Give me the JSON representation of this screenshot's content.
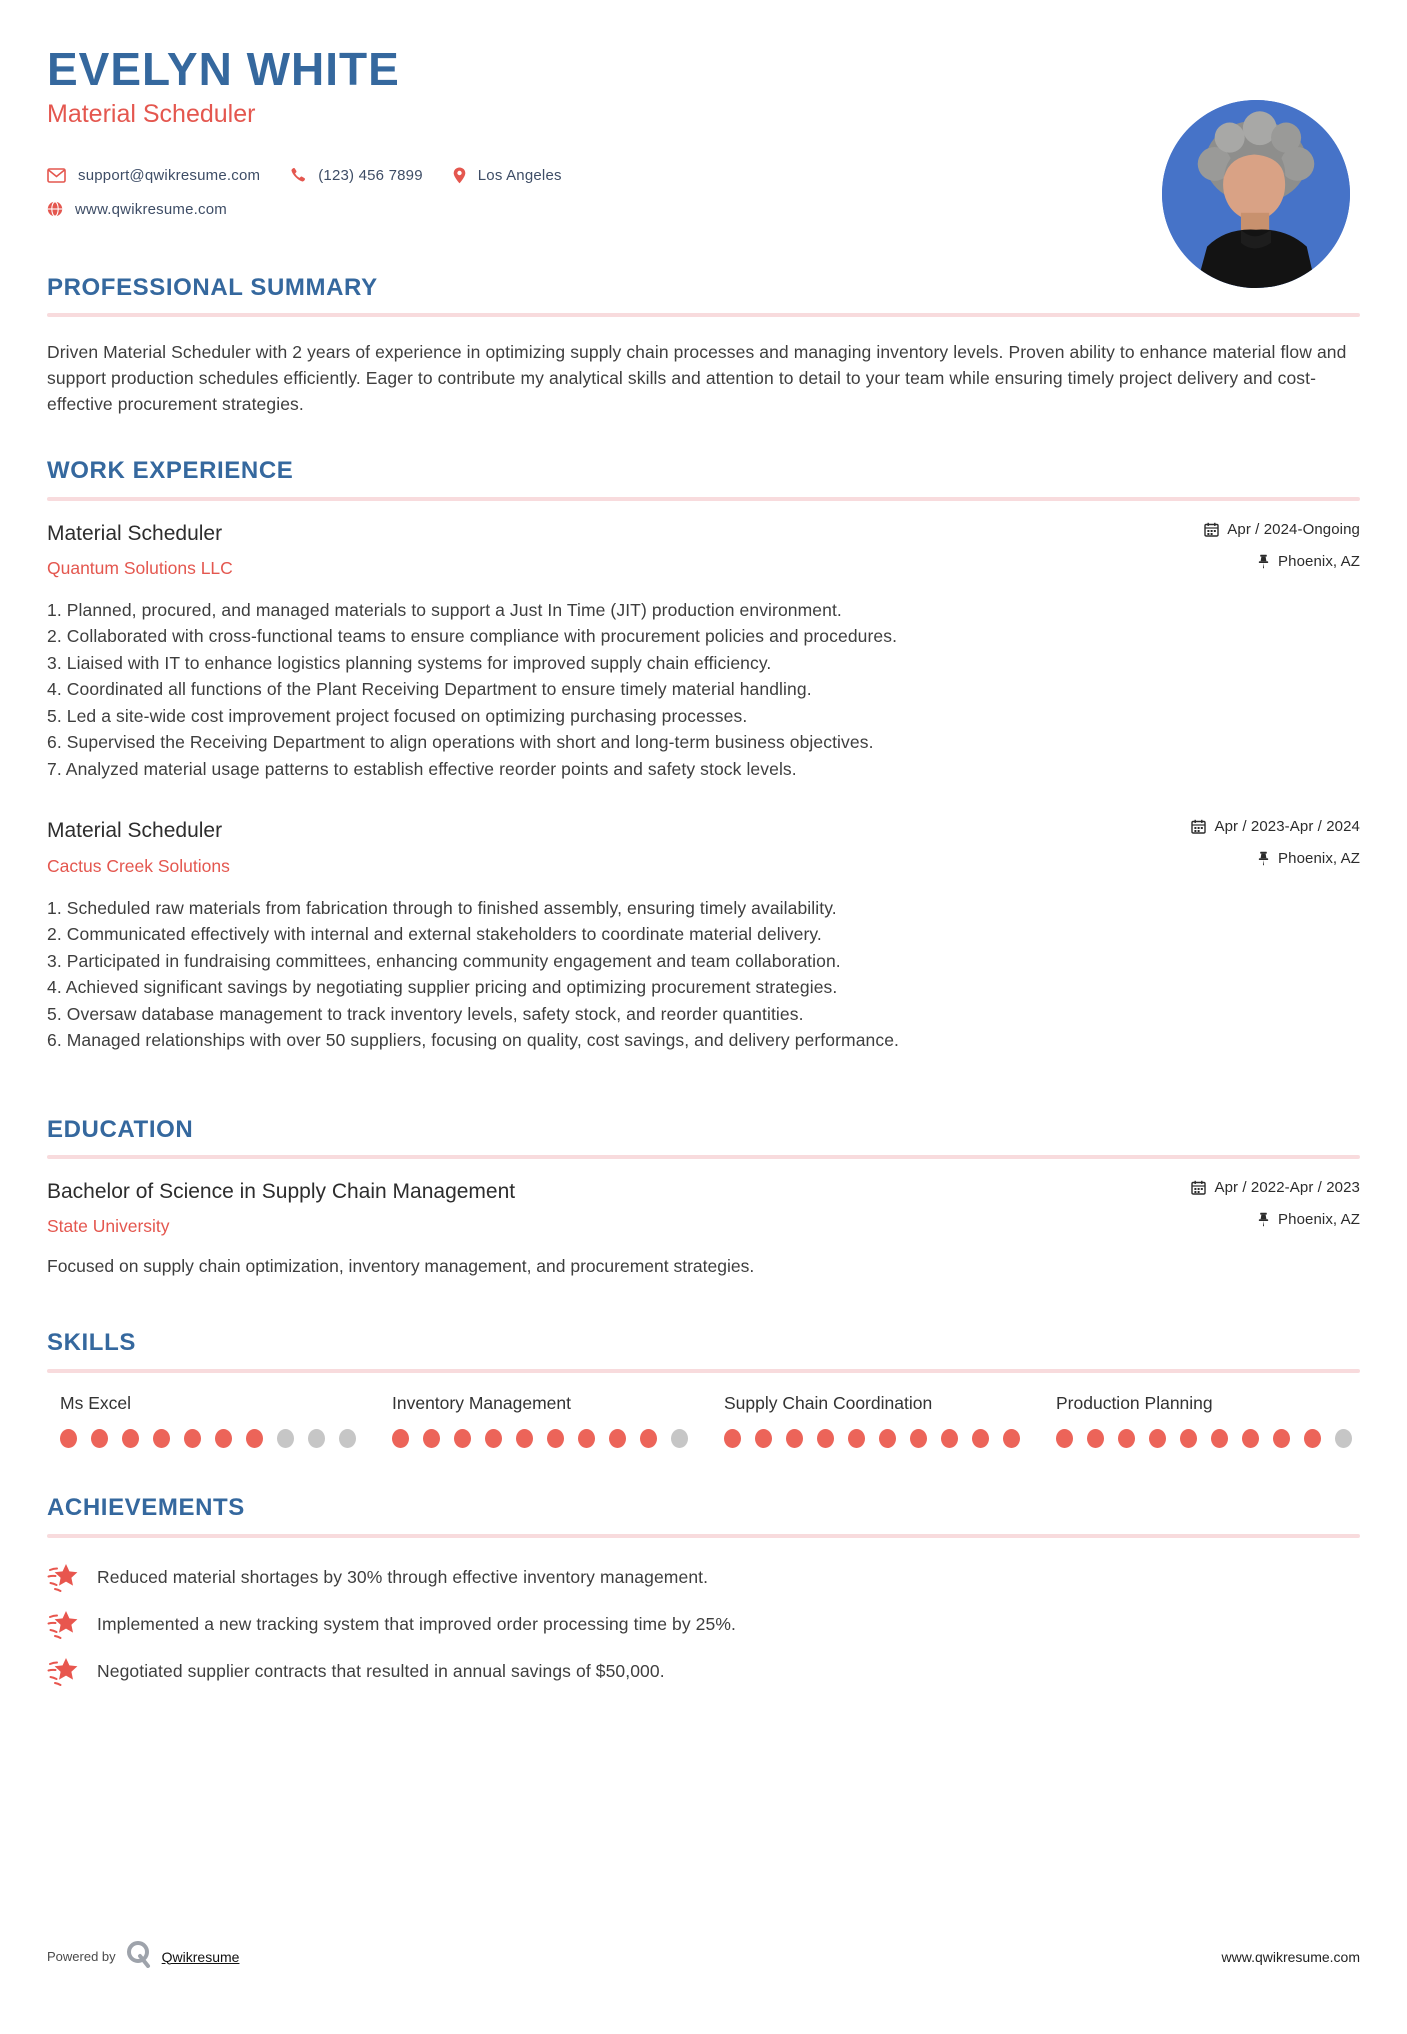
{
  "header": {
    "name": "EVELYN WHITE",
    "title": "Material Scheduler",
    "contact": {
      "email": "support@qwikresume.com",
      "phone": "(123) 456 7899",
      "location": "Los Angeles",
      "website": "www.qwikresume.com"
    },
    "icons": [
      "envelope-icon",
      "phone-icon",
      "map-marker-icon",
      "globe-icon"
    ],
    "photo": "circular-portrait-photo-blue-background"
  },
  "sections": {
    "summary": {
      "heading": "PROFESSIONAL SUMMARY",
      "text": "Driven Material Scheduler with 2 years of experience in optimizing supply chain processes and managing inventory levels. Proven ability to enhance material flow and support production schedules efficiently. Eager to contribute my analytical skills and attention to detail to your team while ensuring timely project delivery and cost-effective procurement strategies."
    },
    "work": {
      "heading": "WORK EXPERIENCE",
      "jobs": [
        {
          "title": "Material Scheduler",
          "company": "Quantum Solutions LLC",
          "dates": "Apr / 2024-Ongoing",
          "location": "Phoenix, AZ",
          "bullets": [
            "Planned, procured, and managed materials to support a Just In Time (JIT) production environment.",
            "Collaborated with cross-functional teams to ensure compliance with procurement policies and procedures.",
            "Liaised with IT to enhance logistics planning systems for improved supply chain efficiency.",
            "Coordinated all functions of the Plant Receiving Department to ensure timely material handling.",
            "Led a site-wide cost improvement project focused on optimizing purchasing processes.",
            "Supervised the Receiving Department to align operations with short and long-term business objectives.",
            "Analyzed material usage patterns to establish effective reorder points and safety stock levels."
          ]
        },
        {
          "title": "Material Scheduler",
          "company": "Cactus Creek Solutions",
          "dates": "Apr / 2023-Apr / 2024",
          "location": "Phoenix, AZ",
          "bullets": [
            "Scheduled raw materials from fabrication through to finished assembly, ensuring timely availability.",
            "Communicated effectively with internal and external stakeholders to coordinate material delivery.",
            "Participated in fundraising committees, enhancing community engagement and team collaboration.",
            "Achieved significant savings by negotiating supplier pricing and optimizing procurement strategies.",
            "Oversaw database management to track inventory levels, safety stock, and reorder quantities.",
            "Managed relationships with over 50 suppliers, focusing on quality, cost savings, and delivery performance."
          ]
        }
      ]
    },
    "education": {
      "heading": "EDUCATION",
      "degree": "Bachelor of Science in Supply Chain Management",
      "school": "State University",
      "dates": "Apr / 2022-Apr / 2023",
      "location": "Phoenix, AZ",
      "description": "Focused on supply chain optimization, inventory management, and procurement strategies."
    },
    "skills": {
      "heading": "SKILLS",
      "items": [
        {
          "name": "Ms Excel",
          "level": 7,
          "max": 10
        },
        {
          "name": "Inventory Management",
          "level": 9,
          "max": 10
        },
        {
          "name": "Supply Chain Coordination",
          "level": 10,
          "max": 10
        },
        {
          "name": "Production Planning",
          "level": 9,
          "max": 10
        }
      ]
    },
    "achievements": {
      "heading": "ACHIEVEMENTS",
      "icon": "shooting-star-icon",
      "items": [
        "Reduced material shortages by 30% through effective inventory management.",
        "Implemented a new tracking system that improved order processing time by 25%.",
        "Negotiated supplier contracts that resulted in annual savings of $50,000."
      ]
    }
  },
  "footer": {
    "powered_by": "Powered by",
    "brand": "Qwikresume",
    "brand_icon": "qwikresume-q-logo",
    "website": "www.qwikresume.com"
  },
  "colors": {
    "heading_blue": "#35689E",
    "accent_red": "#E4574F",
    "divider_pink": "#F8DBDD",
    "dot_red": "#EC6459",
    "dot_gray": "#C6C6C6",
    "body_text": "#3E3E3E",
    "contact_text": "#3E4D66",
    "photo_background": "#4673C8"
  }
}
